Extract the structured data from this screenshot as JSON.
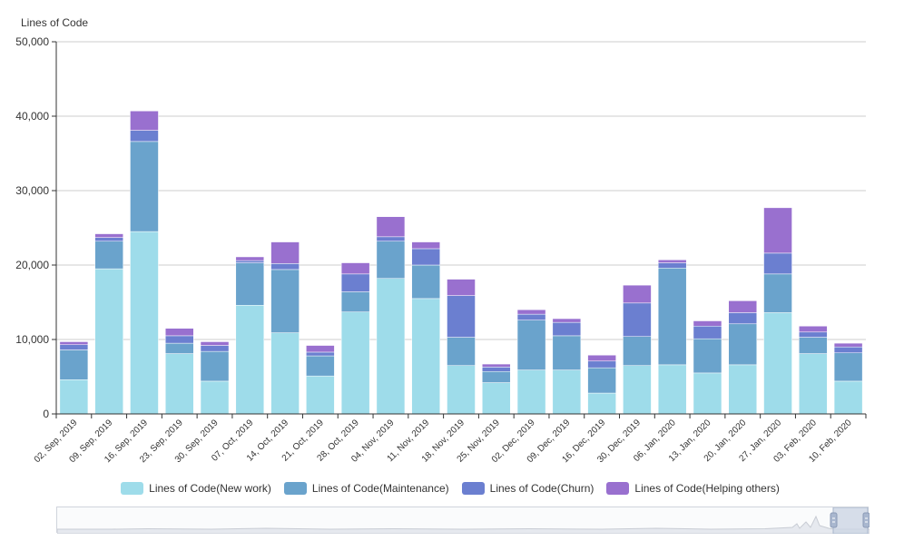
{
  "chart_data": {
    "type": "bar",
    "stacked": true,
    "ylabel": "Lines of Code",
    "ylim": [
      0,
      50000
    ],
    "yticks": [
      0,
      10000,
      20000,
      30000,
      40000,
      50000
    ],
    "ytick_labels": [
      "0",
      "10,000",
      "20,000",
      "30,000",
      "40,000",
      "50,000"
    ],
    "grid": true,
    "legend_position": "bottom",
    "categories": [
      "02, Sep, 2019",
      "09, Sep, 2019",
      "16, Sep, 2019",
      "23, Sep, 2019",
      "30, Sep, 2019",
      "07, Oct, 2019",
      "14, Oct, 2019",
      "21, Oct, 2019",
      "28, Oct, 2019",
      "04, Nov, 2019",
      "11, Nov, 2019",
      "18, Nov, 2019",
      "25, Nov, 2019",
      "02, Dec, 2019",
      "09, Dec, 2019",
      "16, Dec, 2019",
      "30, Dec, 2019",
      "06, Jan, 2020",
      "13, Jan, 2020",
      "20, Jan, 2020",
      "27, Jan, 2020",
      "03, Feb, 2020",
      "10, Feb, 2020"
    ],
    "series": [
      {
        "name": "Lines of Code(New work)",
        "color": "#9edcea",
        "values": [
          4600,
          19500,
          24500,
          8100,
          4400,
          14600,
          10900,
          5100,
          13700,
          18200,
          15500,
          6500,
          4200,
          5900,
          5900,
          2800,
          6500,
          6600,
          5500,
          6600,
          13600,
          8100,
          4400
        ]
      },
      {
        "name": "Lines of Code(Maintenance)",
        "color": "#6aa3cc",
        "values": [
          4000,
          3700,
          12100,
          1400,
          4000,
          5700,
          8500,
          2700,
          2700,
          5000,
          4500,
          3800,
          1500,
          6700,
          4600,
          3400,
          3900,
          13000,
          4600,
          5500,
          5200,
          2200,
          3800
        ]
      },
      {
        "name": "Lines of Code(Churn)",
        "color": "#6b7fd0",
        "values": [
          700,
          500,
          1500,
          1000,
          800,
          300,
          800,
          500,
          2400,
          600,
          2200,
          5600,
          600,
          800,
          1800,
          900,
          4500,
          700,
          1700,
          1500,
          2800,
          700,
          800
        ]
      },
      {
        "name": "Lines of Code(Helping others)",
        "color": "#9970cf",
        "values": [
          400,
          500,
          2600,
          1000,
          500,
          500,
          2900,
          900,
          1500,
          2700,
          900,
          2200,
          400,
          600,
          500,
          800,
          2400,
          400,
          700,
          1600,
          6100,
          800,
          500
        ]
      }
    ]
  }
}
